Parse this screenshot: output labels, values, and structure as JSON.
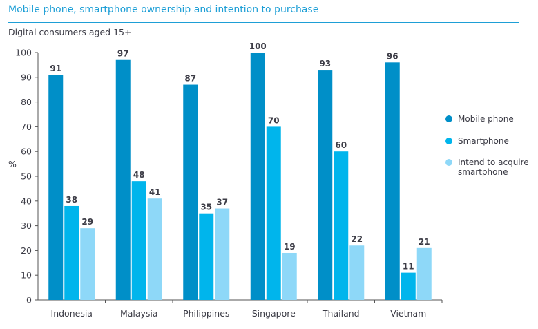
{
  "chart_data": {
    "type": "bar",
    "title": "Mobile phone, smartphone ownership and intention to purchase",
    "subtitle": "Digital consumers aged 15+",
    "xlabel": "",
    "ylabel": "%",
    "ylim": [
      0,
      100
    ],
    "yticks": [
      0,
      10,
      20,
      30,
      40,
      50,
      60,
      70,
      80,
      90,
      100
    ],
    "grid": false,
    "legend_position": "right",
    "categories": [
      "Indonesia",
      "Malaysia",
      "Philippines",
      "Singapore",
      "Thailand",
      "Vietnam"
    ],
    "series": [
      {
        "name": "Mobile phone",
        "color": "#008fc8",
        "values": [
          91,
          97,
          87,
          100,
          93,
          96
        ]
      },
      {
        "name": "Smartphone",
        "color": "#00b5ec",
        "values": [
          38,
          48,
          35,
          70,
          60,
          11
        ]
      },
      {
        "name": "Intend to acquire smartphone",
        "legend_lines": [
          "Intend to acquire",
          "smartphone"
        ],
        "color": "#8ed8f8",
        "values": [
          29,
          41,
          37,
          19,
          22,
          21
        ]
      }
    ]
  }
}
